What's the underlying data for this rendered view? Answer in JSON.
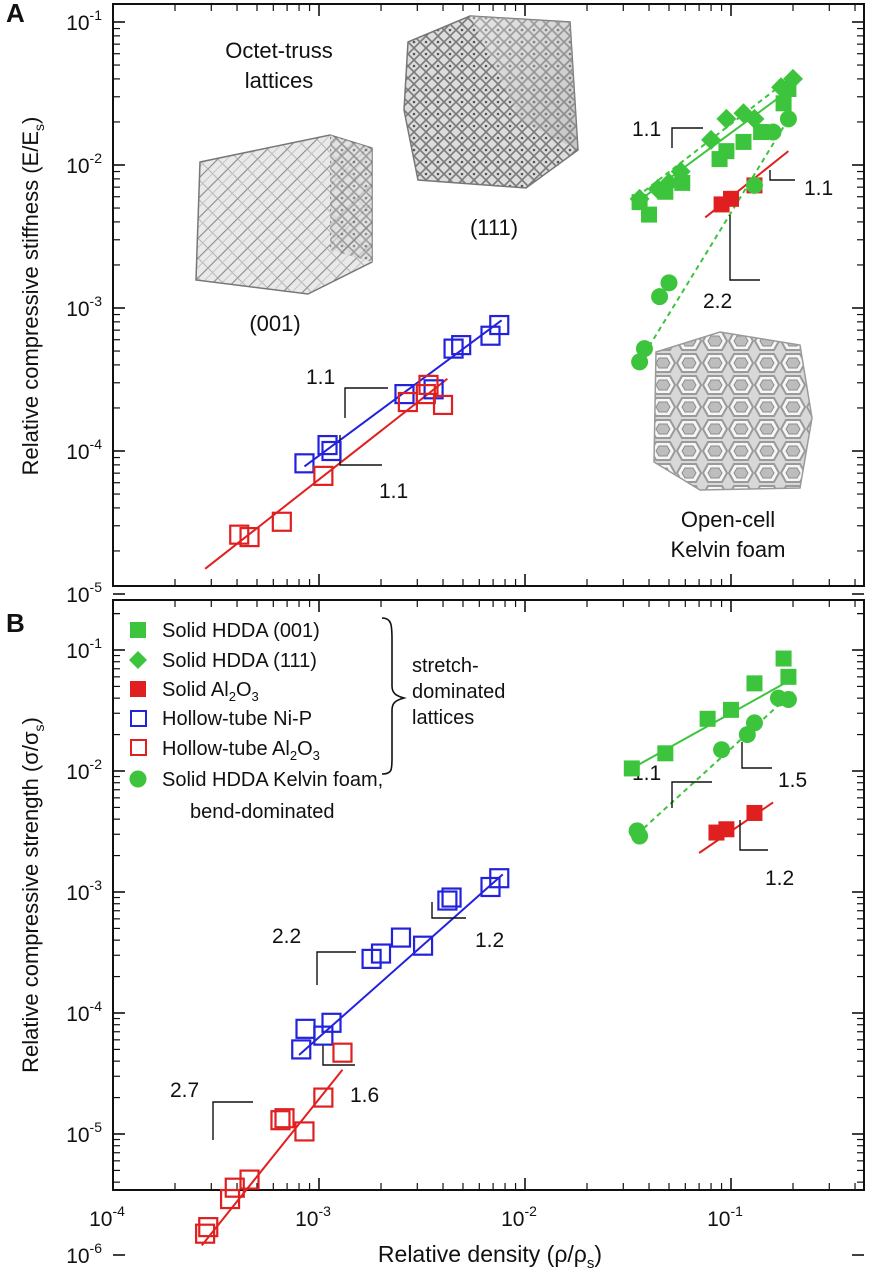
{
  "chart_data": [
    {
      "panel": "A",
      "type": "scatter",
      "scale": "log-log",
      "ylabel": "Relative compressive stiffness (E/E",
      "ylabel_sub": "s",
      "ylabel_close": ")",
      "ylim": [
        1e-05,
        0.1
      ],
      "xlim": [
        0.0001,
        1
      ],
      "y_ticks": [
        {
          "base": "10",
          "exp": "-1"
        },
        {
          "base": "10",
          "exp": "-2"
        },
        {
          "base": "10",
          "exp": "-3"
        },
        {
          "base": "10",
          "exp": "-4"
        },
        {
          "base": "10",
          "exp": "-5"
        }
      ],
      "annotations": {
        "octet_title_1": "Octet-truss",
        "octet_title_2": "lattices",
        "lattice_001": "(001)",
        "lattice_111": "(111)",
        "kelvin_1": "Open-cell",
        "kelvin_2": "Kelvin foam",
        "slope_nip": "1.1",
        "slope_al2o3_hollow": "1.1",
        "slope_hdda_111": "1.1",
        "slope_al2o3_solid": "1.1",
        "slope_kelvin": "2.2"
      },
      "series": [
        {
          "name": "Solid HDDA (001)",
          "marker": "filled-square",
          "color": "#3cc43c",
          "x": [
            0.036,
            0.04,
            0.048,
            0.058,
            0.088,
            0.095,
            0.115,
            0.14,
            0.18,
            0.19
          ],
          "y": [
            0.0055,
            0.0045,
            0.0065,
            0.0075,
            0.011,
            0.0125,
            0.0145,
            0.017,
            0.027,
            0.034
          ],
          "fit": {
            "x": [
              0.035,
              0.2
            ],
            "y": [
              0.0055,
              0.035
            ],
            "style": "solid"
          }
        },
        {
          "name": "Solid HDDA (111)",
          "marker": "filled-diamond",
          "color": "#3cc43c",
          "x": [
            0.036,
            0.044,
            0.05,
            0.057,
            0.08,
            0.095,
            0.115,
            0.13,
            0.175,
            0.2
          ],
          "y": [
            0.0058,
            0.0068,
            0.0075,
            0.009,
            0.015,
            0.021,
            0.023,
            0.021,
            0.035,
            0.04
          ],
          "fit": {
            "x": [
              0.035,
              0.2
            ],
            "y": [
              0.006,
              0.042
            ],
            "style": "dashed"
          }
        },
        {
          "name": "Solid Al2O3",
          "marker": "filled-square",
          "color": "#e02020",
          "x": [
            0.09,
            0.1,
            0.13
          ],
          "y": [
            0.0053,
            0.0058,
            0.0072
          ],
          "fit": {
            "x": [
              0.075,
              0.19
            ],
            "y": [
              0.0043,
              0.0125
            ],
            "style": "solid"
          }
        },
        {
          "name": "Solid HDDA Kelvin foam",
          "marker": "filled-circle",
          "color": "#3cc43c",
          "x": [
            0.036,
            0.038,
            0.045,
            0.05,
            0.13,
            0.16,
            0.19
          ],
          "y": [
            0.00042,
            0.00052,
            0.0012,
            0.0015,
            0.0072,
            0.017,
            0.021
          ],
          "fit": {
            "x": [
              0.036,
              0.19
            ],
            "y": [
              0.00042,
              0.021
            ],
            "style": "dashed"
          }
        },
        {
          "name": "Hollow-tube Ni-P",
          "marker": "open-square",
          "color": "#2222dd",
          "x": [
            0.00085,
            0.0011,
            0.00115,
            0.0026,
            0.0036,
            0.0045,
            0.0049,
            0.0068,
            0.0075
          ],
          "y": [
            8.2e-05,
            0.00011,
            0.0001,
            0.00025,
            0.00027,
            0.00052,
            0.00055,
            0.00064,
            0.00076
          ],
          "fit": {
            "x": [
              0.00085,
              0.0077
            ],
            "y": [
              7.8e-05,
              0.00082
            ],
            "style": "solid"
          }
        },
        {
          "name": "Hollow-tube Al2O3",
          "marker": "open-square",
          "color": "#e02020",
          "x": [
            0.00041,
            0.00046,
            0.00066,
            0.00105,
            0.0027,
            0.0033,
            0.0034,
            0.004
          ],
          "y": [
            2.6e-05,
            2.5e-05,
            3.2e-05,
            6.7e-05,
            0.00022,
            0.00025,
            0.00029,
            0.00021
          ],
          "fit": {
            "x": [
              0.00028,
              0.0042
            ],
            "y": [
              1.5e-05,
              0.00032
            ],
            "style": "solid"
          }
        }
      ]
    },
    {
      "panel": "B",
      "type": "scatter",
      "scale": "log-log",
      "ylabel": "Relative compressive strength (σ/σ",
      "ylabel_sub": "s",
      "ylabel_close": ")",
      "xlabel": "Relative density (ρ/ρ",
      "xlabel_sub": "s",
      "xlabel_close": ")",
      "ylim": [
        1e-06,
        0.3
      ],
      "xlim": [
        0.0001,
        0.6
      ],
      "y_ticks": [
        {
          "base": "10",
          "exp": "-1"
        },
        {
          "base": "10",
          "exp": "-2"
        },
        {
          "base": "10",
          "exp": "-3"
        },
        {
          "base": "10",
          "exp": "-4"
        },
        {
          "base": "10",
          "exp": "-5"
        },
        {
          "base": "10",
          "exp": "-6"
        }
      ],
      "x_ticks": [
        {
          "base": "10",
          "exp": "-4"
        },
        {
          "base": "10",
          "exp": "-3"
        },
        {
          "base": "10",
          "exp": "-2"
        },
        {
          "base": "10",
          "exp": "-1"
        }
      ],
      "legend": {
        "placement": "top-left",
        "items": [
          {
            "label": "Solid HDDA (001)",
            "marker": "filled-square",
            "color": "#3cc43c"
          },
          {
            "label": "Solid HDDA (111)",
            "marker": "filled-diamond",
            "color": "#3cc43c"
          },
          {
            "label": "Solid Al",
            "sub": "2",
            "label2": "O",
            "sub2": "3",
            "marker": "filled-square",
            "color": "#e02020"
          },
          {
            "label": "Hollow-tube Ni-P",
            "marker": "open-square",
            "color": "#2222dd"
          },
          {
            "label": "Hollow-tube Al",
            "sub": "2",
            "label2": "O",
            "sub2": "3",
            "marker": "open-square",
            "color": "#e02020"
          },
          {
            "label": "Solid HDDA Kelvin foam,",
            "marker": "filled-circle",
            "color": "#3cc43c"
          }
        ],
        "kelvin_line2": "bend-dominated",
        "bracket_text_1": "stretch-",
        "bracket_text_2": "dominated",
        "bracket_text_3": "lattices"
      },
      "annotations": {
        "slope_hdda": "1.1",
        "slope_kelvin": "1.5",
        "slope_al2o3_solid": "1.2",
        "slope_nip_low": "2.2",
        "slope_nip_high": "1.2",
        "slope_al2o3_low": "2.7",
        "slope_al2o3_high": "1.6"
      },
      "series": [
        {
          "name": "Solid HDDA (001)",
          "marker": "filled-square",
          "color": "#3cc43c",
          "x": [
            0.033,
            0.048,
            0.077,
            0.1,
            0.13,
            0.18,
            0.19
          ],
          "y": [
            0.0105,
            0.014,
            0.027,
            0.032,
            0.053,
            0.085,
            0.06
          ],
          "fit": {
            "x": [
              0.033,
              0.2
            ],
            "y": [
              0.0105,
              0.058
            ],
            "style": "solid"
          }
        },
        {
          "name": "Solid HDDA Kelvin foam",
          "marker": "filled-circle",
          "color": "#3cc43c",
          "x": [
            0.035,
            0.036,
            0.09,
            0.12,
            0.13,
            0.17,
            0.19
          ],
          "y": [
            0.0032,
            0.0029,
            0.015,
            0.02,
            0.025,
            0.04,
            0.039
          ],
          "fit": {
            "x": [
              0.035,
              0.2
            ],
            "y": [
              0.003,
              0.045
            ],
            "style": "dashed"
          }
        },
        {
          "name": "Solid Al2O3",
          "marker": "filled-square",
          "color": "#e02020",
          "x": [
            0.085,
            0.095,
            0.13
          ],
          "y": [
            0.0031,
            0.0033,
            0.0045
          ],
          "fit": {
            "x": [
              0.07,
              0.16
            ],
            "y": [
              0.0021,
              0.0055
            ],
            "style": "solid"
          }
        },
        {
          "name": "Hollow-tube Ni-P",
          "marker": "open-square",
          "color": "#2222dd",
          "x": [
            0.00082,
            0.00086,
            0.00105,
            0.00115,
            0.0018,
            0.002,
            0.0025,
            0.0032,
            0.0042,
            0.0044,
            0.0068,
            0.0075
          ],
          "y": [
            5e-05,
            7.4e-05,
            6.5e-05,
            8.3e-05,
            0.00028,
            0.00031,
            0.00042,
            0.00036,
            0.00085,
            0.0009,
            0.0011,
            0.0013
          ],
          "fit": {
            "x": [
              0.0008,
              0.0078
            ],
            "y": [
              4.5e-05,
              0.0014
            ],
            "style": "solid"
          }
        },
        {
          "name": "Hollow-tube Al2O3",
          "marker": "open-square",
          "color": "#e02020",
          "x": [
            0.00028,
            0.00029,
            0.00037,
            0.00039,
            0.00046,
            0.00065,
            0.00068,
            0.00085,
            0.00105,
            0.0013
          ],
          "y": [
            1.5e-06,
            1.7e-06,
            2.9e-06,
            3.6e-06,
            4.2e-06,
            1.3e-05,
            1.35e-05,
            1.05e-05,
            2e-05,
            4.7e-05
          ],
          "fit": {
            "x": [
              0.00027,
              0.0013
            ],
            "y": [
              1.2e-06,
              3.4e-05
            ],
            "style": "solid"
          }
        }
      ]
    }
  ],
  "panel_labels": {
    "a": "A",
    "b": "B"
  }
}
